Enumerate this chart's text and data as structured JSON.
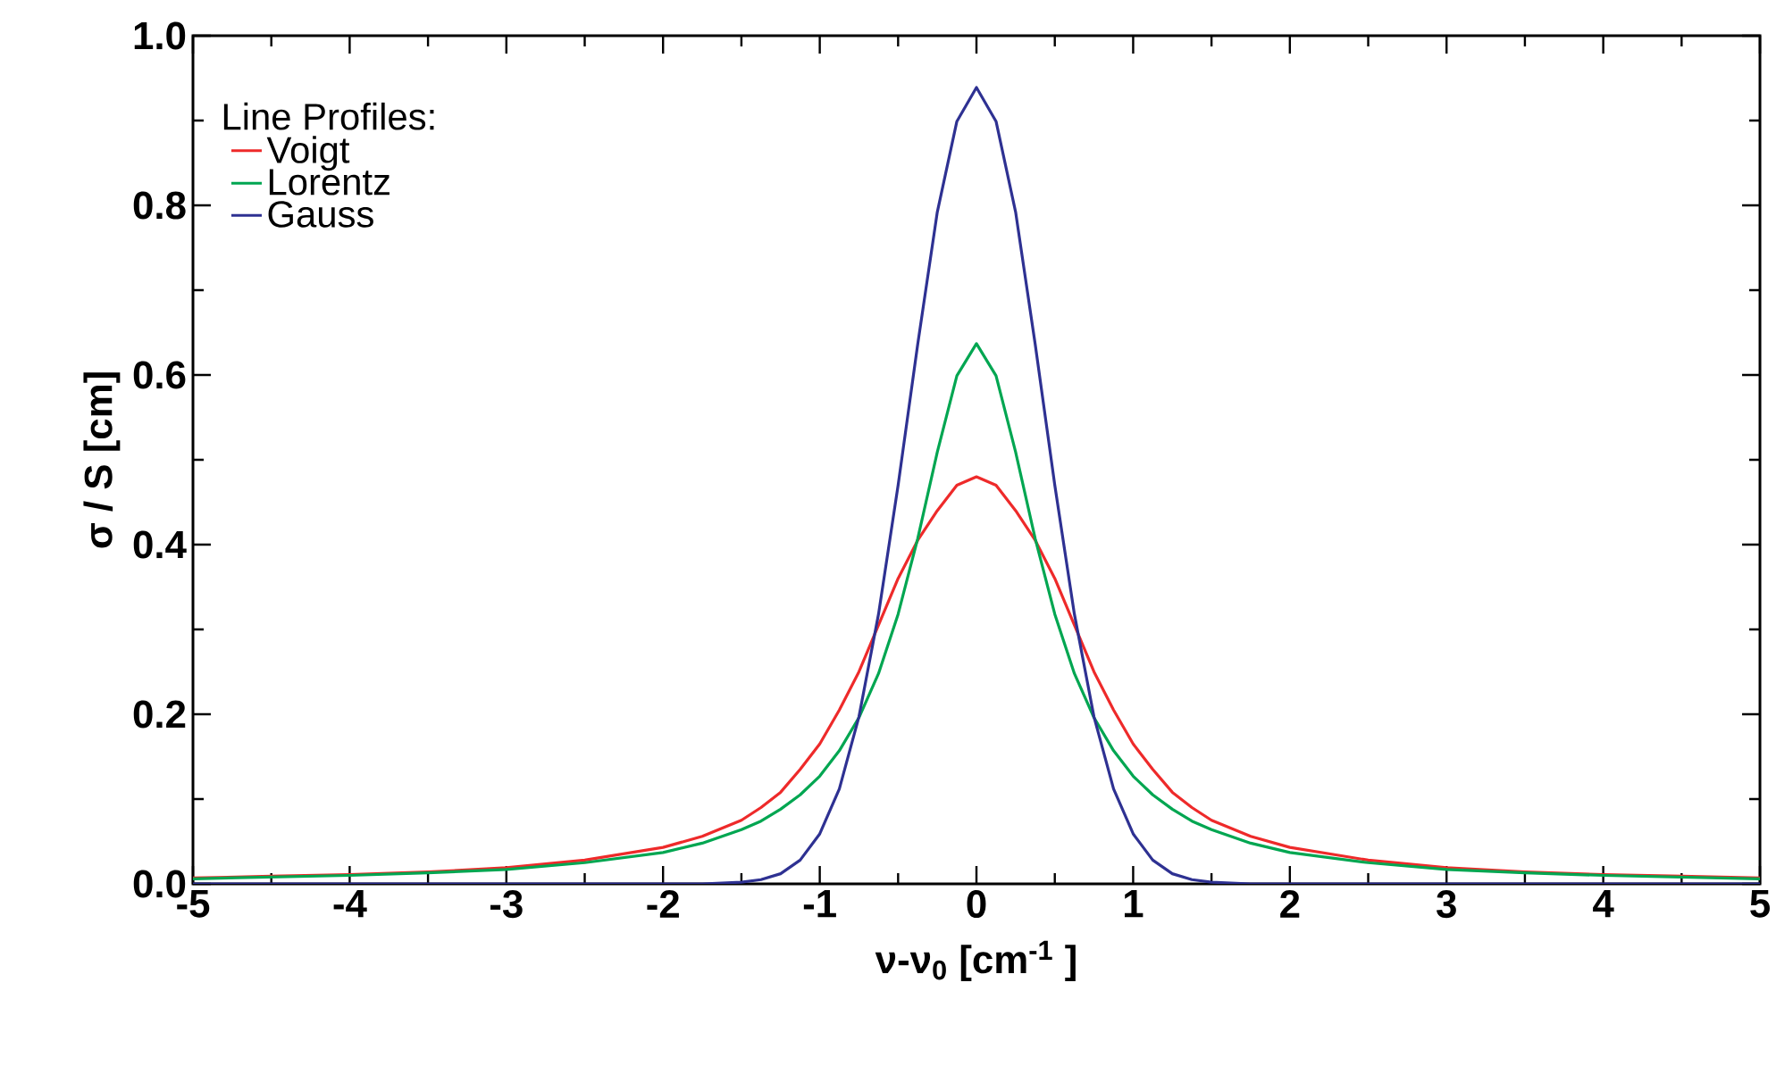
{
  "chart_data": {
    "type": "line",
    "xlabel": "ν-ν$_{0}$ [cm$^{-1}$ ]",
    "ylabel": "σ / S [cm]",
    "legend_title": "Line Profiles:",
    "legend": "top left",
    "marker": "none",
    "line_style": "solid",
    "grid": false,
    "x": [
      -5,
      -4.5,
      -4,
      -3.5,
      -3,
      -2.5,
      -2,
      -1.75,
      -1.5,
      -1.375,
      -1.25,
      -1.125,
      -1,
      -0.875,
      -0.75,
      -0.625,
      -0.5,
      -0.375,
      -0.25,
      -0.125,
      0,
      0.125,
      0.25,
      0.375,
      0.5,
      0.625,
      0.75,
      0.875,
      1,
      1.125,
      1.25,
      1.375,
      1.5,
      1.75,
      2,
      2.5,
      3,
      3.5,
      4,
      4.5,
      5
    ],
    "series": [
      {
        "name": "Voigt",
        "color": "#ee2a2a",
        "values": [
          0.007,
          0.009,
          0.011,
          0.014,
          0.019,
          0.028,
          0.043,
          0.056,
          0.075,
          0.09,
          0.108,
          0.135,
          0.165,
          0.205,
          0.25,
          0.305,
          0.36,
          0.405,
          0.44,
          0.47,
          0.48,
          0.47,
          0.44,
          0.405,
          0.36,
          0.305,
          0.25,
          0.205,
          0.165,
          0.135,
          0.108,
          0.09,
          0.075,
          0.056,
          0.043,
          0.028,
          0.019,
          0.014,
          0.011,
          0.009,
          0.007
        ]
      },
      {
        "name": "Lorentz",
        "color": "#00a651",
        "values": [
          0.006,
          0.008,
          0.01,
          0.013,
          0.017,
          0.025,
          0.037,
          0.048,
          0.064,
          0.074,
          0.088,
          0.105,
          0.127,
          0.157,
          0.196,
          0.248,
          0.318,
          0.407,
          0.509,
          0.599,
          0.637,
          0.599,
          0.509,
          0.407,
          0.318,
          0.248,
          0.196,
          0.157,
          0.127,
          0.105,
          0.088,
          0.074,
          0.064,
          0.048,
          0.037,
          0.025,
          0.017,
          0.013,
          0.01,
          0.008,
          0.006
        ]
      },
      {
        "name": "Gauss",
        "color": "#2e3192",
        "values": [
          0,
          0,
          0,
          0,
          0,
          0,
          0,
          0,
          0.002,
          0.005,
          0.012,
          0.028,
          0.059,
          0.112,
          0.197,
          0.318,
          0.47,
          0.636,
          0.792,
          0.899,
          0.939,
          0.899,
          0.792,
          0.636,
          0.47,
          0.318,
          0.197,
          0.112,
          0.059,
          0.028,
          0.012,
          0.005,
          0.002,
          0,
          0,
          0,
          0,
          0,
          0,
          0,
          0
        ]
      }
    ],
    "xlim": [
      -5,
      5
    ],
    "ylim": [
      0,
      1.0
    ],
    "xticks": [
      -5,
      {
        "value": -4.5,
        "label": null
      },
      -4,
      {
        "value": -3.5,
        "label": null
      },
      -3,
      {
        "value": -2.5,
        "label": null
      },
      -2,
      {
        "value": -1.5,
        "label": null
      },
      -1,
      {
        "value": -0.5,
        "label": null
      },
      0,
      {
        "value": 0.5,
        "label": null
      },
      1,
      {
        "value": 1.5,
        "label": null
      },
      2,
      {
        "value": 2.5,
        "label": null
      },
      3,
      {
        "value": 3.5,
        "label": null
      },
      4,
      {
        "value": 4.5,
        "label": null
      },
      5
    ],
    "yticks": [
      {
        "value": 0,
        "label": "0.0"
      },
      {
        "value": 0.1,
        "label": null
      },
      {
        "value": 0.2,
        "label": "0.2"
      },
      {
        "value": 0.3,
        "label": null
      },
      {
        "value": 0.4,
        "label": "0.4"
      },
      {
        "value": 0.5,
        "label": null
      },
      {
        "value": 0.6,
        "label": "0.6"
      },
      {
        "value": 0.7,
        "label": null
      },
      {
        "value": 0.8,
        "label": "0.8"
      },
      {
        "value": 0.9,
        "label": null
      },
      {
        "value": 1.0,
        "label": "1.0"
      }
    ]
  }
}
